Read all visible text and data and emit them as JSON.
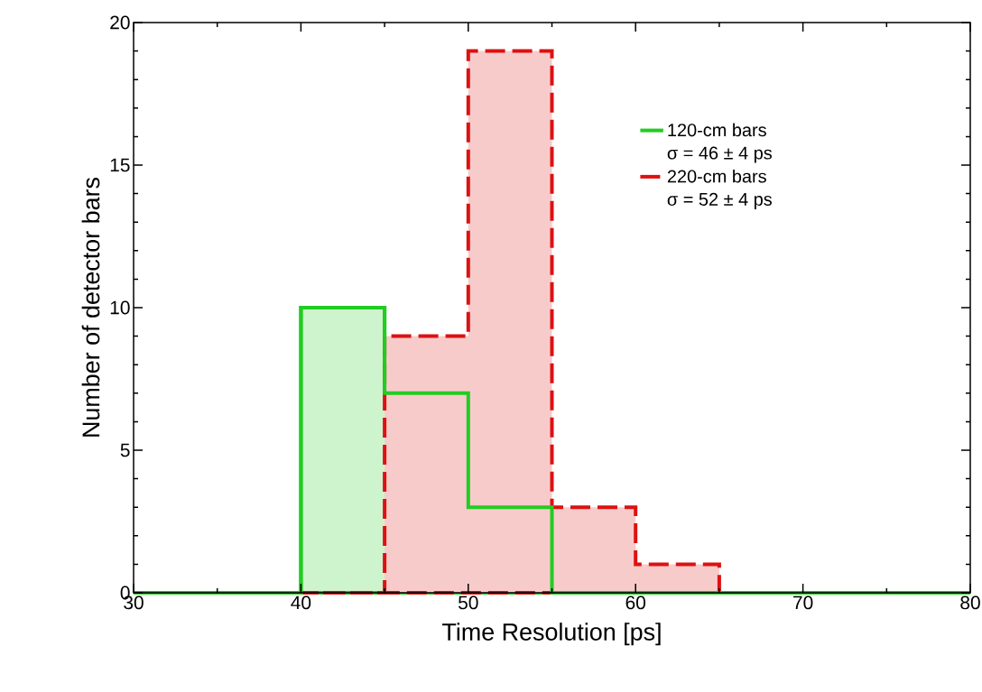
{
  "chart_data": {
    "type": "histogram",
    "xlabel": "Time Resolution [ps]",
    "ylabel": "Number of detector bars",
    "bins": [
      30,
      35,
      40,
      45,
      50,
      55,
      60,
      65,
      70,
      75,
      80
    ],
    "series": [
      {
        "name": "120-cm bars",
        "color": "#22cc22",
        "line_style": "solid",
        "values": [
          0,
          0,
          10,
          7,
          3,
          0,
          0,
          0,
          0,
          0
        ]
      },
      {
        "name": "220-cm bars",
        "color": "#dd1111",
        "line_style": "dashed",
        "values": [
          0,
          0,
          0,
          9,
          19,
          3,
          1,
          0,
          0,
          0
        ]
      }
    ],
    "annotations": [
      "σ =  46 ±  4 ps",
      "σ =  52 ±  4 ps"
    ],
    "xlim": [
      30,
      80
    ],
    "ylim": [
      0,
      20
    ],
    "xticks": [
      30,
      40,
      50,
      60,
      70,
      80
    ],
    "yticks": [
      0,
      5,
      10,
      15,
      20
    ],
    "grid": false,
    "legend": "top right"
  }
}
